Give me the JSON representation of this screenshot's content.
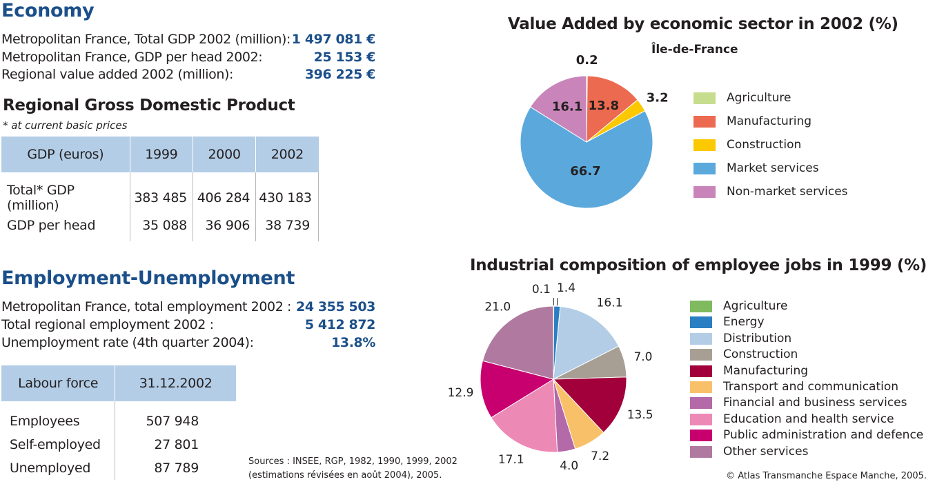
{
  "economy": {
    "title": "Economy",
    "rows": [
      {
        "label": "Metropolitan France, Total GDP 2002 (million):",
        "value": "1 497 081 €"
      },
      {
        "label": "Metropolitan France, GDP per head 2002:",
        "value": "25 153 €"
      },
      {
        "label": "Regional value added 2002 (million):",
        "value": "396 225 €"
      }
    ]
  },
  "gdp_table": {
    "title": "Regional Gross Domestic Product",
    "note": "* at current basic prices",
    "headers": [
      "GDP (euros)",
      "1999",
      "2000",
      "2002"
    ],
    "rows": [
      [
        "Total* GDP (million)",
        "383 485",
        "406 284",
        "430 183"
      ],
      [
        "GDP per head",
        "35 088",
        "36 906",
        "38 739"
      ]
    ]
  },
  "employment": {
    "title": "Employment-Unemployment",
    "rows": [
      {
        "label": "Metropolitan France, total employment 2002 :",
        "value": "24 355 503"
      },
      {
        "label": "Total regional employment 2002 :",
        "value": "5 412 872"
      },
      {
        "label": "Unemployment rate (4th quarter 2004):",
        "value": "13.8%"
      }
    ]
  },
  "labour_table": {
    "headers": [
      "Labour force",
      "31.12.2002"
    ],
    "rows": [
      [
        "Employees",
        "507 948"
      ],
      [
        "Self-employed",
        "27 801"
      ],
      [
        "Unemployed",
        "87 789"
      ]
    ]
  },
  "sources": {
    "line1": "Sources : INSEE, RGP, 1982, 1990, 1999, 2002",
    "line2": "(estimations révisées en août 2004), 2005."
  },
  "copyright": "© Atlas Transmanche Espace Manche, 2005.",
  "chart_data": [
    {
      "type": "pie",
      "title": "Value Added by economic sector in 2002 (%)",
      "subtitle": "Île-de-France",
      "categories": [
        "Agriculture",
        "Manufacturing",
        "Construction",
        "Market services",
        "Non-market services"
      ],
      "values": [
        0.2,
        13.8,
        3.2,
        66.7,
        16.1
      ],
      "labels": [
        "0.2",
        "13.8",
        "3.2",
        "66.7",
        "16.1"
      ],
      "colors": [
        "#c7dd8e",
        "#ec6a4f",
        "#fcc800",
        "#5ba9dc",
        "#c985b9"
      ],
      "legend_position": "right"
    },
    {
      "type": "pie",
      "title": "Industrial composition of employee jobs in 1999 (%)",
      "categories": [
        "Agriculture",
        "Energy",
        "Distribution",
        "Construction",
        "Manufacturing",
        "Transport and communication",
        "Financial and business services",
        "Education and health service",
        "Public administration and defence",
        "Other services"
      ],
      "values": [
        0.1,
        1.4,
        16.1,
        7.0,
        13.5,
        7.2,
        4.0,
        17.1,
        12.9,
        21.0
      ],
      "labels": [
        "0.1",
        "1.4",
        "16.1",
        "7.0",
        "13.5",
        "7.2",
        "4.0",
        "17.1",
        "12.9",
        "21.0"
      ],
      "colors": [
        "#7fba5f",
        "#2a7fc3",
        "#b3cde6",
        "#a89f94",
        "#a2003a",
        "#f9c06a",
        "#b469a8",
        "#ec89b5",
        "#c8006f",
        "#b07aa0"
      ],
      "legend_position": "right"
    }
  ]
}
